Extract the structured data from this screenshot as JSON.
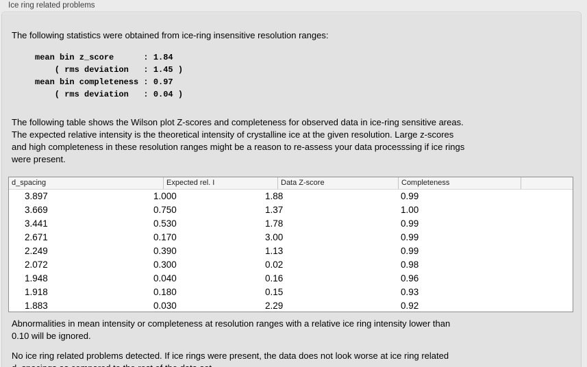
{
  "panel": {
    "title": "Ice ring related problems"
  },
  "intro": {
    "text": "The following statistics were obtained from ice-ring insensitive resolution ranges:"
  },
  "stats_block": {
    "text": "mean bin z_score      : 1.84\n    ( rms deviation   : 1.45 )\nmean bin completeness : 0.97\n    ( rms deviation   : 0.04 )",
    "mean_bin_z_score": "1.84",
    "z_score_rms_deviation": "1.45",
    "mean_bin_completeness": "0.97",
    "completeness_rms_deviation": "0.04"
  },
  "table_description": {
    "text": "The following table shows the Wilson plot Z-scores and completeness for observed data in ice-ring sensitive areas.\nThe expected relative intensity is the theoretical intensity of crystalline ice at the given resolution. Large z-scores\nand high completeness in these resolution ranges might be a reason to re-assess your data processsing if ice rings\nwere present."
  },
  "table": {
    "columns": [
      "d_spacing",
      "Expected rel. I",
      "Data Z-score",
      "Completeness"
    ],
    "rows": [
      [
        "3.897",
        "1.000",
        "1.88",
        "0.99"
      ],
      [
        "3.669",
        "0.750",
        "1.37",
        "1.00"
      ],
      [
        "3.441",
        "0.530",
        "1.78",
        "0.99"
      ],
      [
        "2.671",
        "0.170",
        "3.00",
        "0.99"
      ],
      [
        "2.249",
        "0.390",
        "1.13",
        "0.99"
      ],
      [
        "2.072",
        "0.300",
        "0.02",
        "0.98"
      ],
      [
        "1.948",
        "0.040",
        "0.16",
        "0.96"
      ],
      [
        "1.918",
        "0.180",
        "0.15",
        "0.93"
      ],
      [
        "1.883",
        "0.030",
        "2.29",
        "0.92"
      ]
    ]
  },
  "notes": {
    "ignore_rule": "Abnormalities in mean intensity or completeness at resolution ranges with a relative ice ring intensity lower than\n0.10 will be ignored.",
    "conclusion": "No ice ring related problems detected. If ice rings were present, the data does not look worse at ice ring related\nd_spacings as compared to the rest of the data set."
  },
  "colors": {
    "outer_background": "#ebebeb",
    "panel_background": "#e2e2e2",
    "panel_border": "#d0d0d0",
    "table_border": "#8e8e8e",
    "table_header_background": "#f5f5f5",
    "text": "#000000"
  }
}
